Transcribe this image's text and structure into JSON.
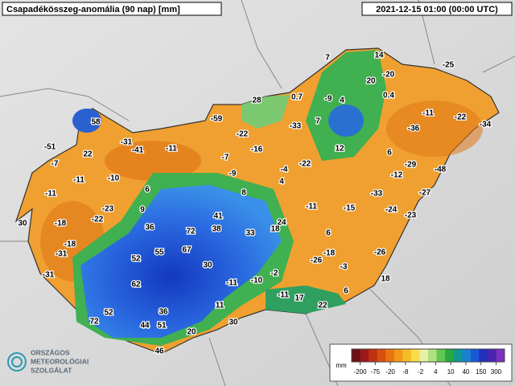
{
  "title": "Csapadékösszeg-anomália (90 nap) [mm]",
  "timestamp": "2021-12-15 01:00 (00:00 UTC)",
  "stations": [
    7,
    14,
    -25,
    -20,
    20,
    0.4,
    0.7,
    -9,
    4,
    28,
    -11,
    -22,
    -34,
    -59,
    -22,
    -33,
    7,
    -36,
    58,
    -31,
    -41,
    -11,
    -16,
    12,
    6,
    -51,
    22,
    -7,
    -22,
    -29,
    -48,
    -7,
    -11,
    -10,
    -9,
    -4,
    -12,
    4,
    6,
    8,
    -11,
    -33,
    -27,
    -23,
    9,
    -11,
    -15,
    -24,
    -23,
    41,
    24,
    30,
    -18,
    -22,
    36,
    72,
    38,
    33,
    18,
    6,
    -18,
    55,
    67,
    -31,
    52,
    -18,
    -26,
    -3,
    -26,
    30,
    -31,
    -2,
    18,
    62,
    -11,
    -10,
    6,
    -11,
    17,
    11,
    22,
    52,
    36,
    72,
    44,
    51,
    30,
    20,
    46
  ],
  "legend": {
    "unit": "mm",
    "ticks": [
      -200,
      -75,
      -20,
      -8,
      -2,
      4,
      10,
      40,
      150,
      300
    ],
    "colors": [
      "#6e0f14",
      "#9a1a18",
      "#c03010",
      "#d85010",
      "#e87410",
      "#f29a18",
      "#f6bc28",
      "#f8dc48",
      "#e8f0a8",
      "#b0e080",
      "#60c850",
      "#28a840",
      "#109890",
      "#1a80d0",
      "#1a58d8",
      "#2030b8",
      "#4a24b0",
      "#7a30c0"
    ]
  },
  "logo": [
    "ORSZÁGOS",
    "METEOROLÓGIAI",
    "SZOLGÁLAT"
  ]
}
